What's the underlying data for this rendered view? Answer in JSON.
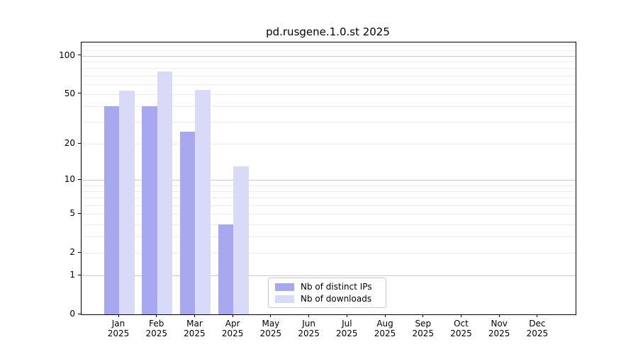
{
  "chart_data": {
    "type": "bar",
    "title": "pd.rusgene.1.0.st 2025",
    "categories": [
      {
        "month": "Jan",
        "year": "2025"
      },
      {
        "month": "Feb",
        "year": "2025"
      },
      {
        "month": "Mar",
        "year": "2025"
      },
      {
        "month": "Apr",
        "year": "2025"
      },
      {
        "month": "May",
        "year": "2025"
      },
      {
        "month": "Jun",
        "year": "2025"
      },
      {
        "month": "Jul",
        "year": "2025"
      },
      {
        "month": "Aug",
        "year": "2025"
      },
      {
        "month": "Sep",
        "year": "2025"
      },
      {
        "month": "Oct",
        "year": "2025"
      },
      {
        "month": "Nov",
        "year": "2025"
      },
      {
        "month": "Dec",
        "year": "2025"
      }
    ],
    "series": [
      {
        "name": "Nb of distinct IPs",
        "color": "#a8a8f0",
        "values": [
          40,
          40,
          25,
          4,
          null,
          null,
          null,
          null,
          null,
          null,
          null,
          null
        ]
      },
      {
        "name": "Nb of downloads",
        "color": "#d9d9f8",
        "values": [
          53,
          75,
          54,
          13,
          null,
          null,
          null,
          null,
          null,
          null,
          null,
          null
        ]
      }
    ],
    "xlabel": "",
    "ylabel": "",
    "y_scale": "log10(1+y)",
    "y_ticks": [
      0,
      1,
      2,
      5,
      10,
      20,
      50,
      100
    ],
    "y_minor_gridlines": [
      2,
      3,
      4,
      5,
      6,
      7,
      8,
      9,
      20,
      30,
      40,
      50,
      60,
      70,
      80,
      90,
      110,
      120
    ],
    "y_major_gridlines": [
      1,
      10,
      100
    ],
    "ylim": [
      0,
      127
    ],
    "grid": true,
    "legend_position": "bottom-center-inside"
  }
}
